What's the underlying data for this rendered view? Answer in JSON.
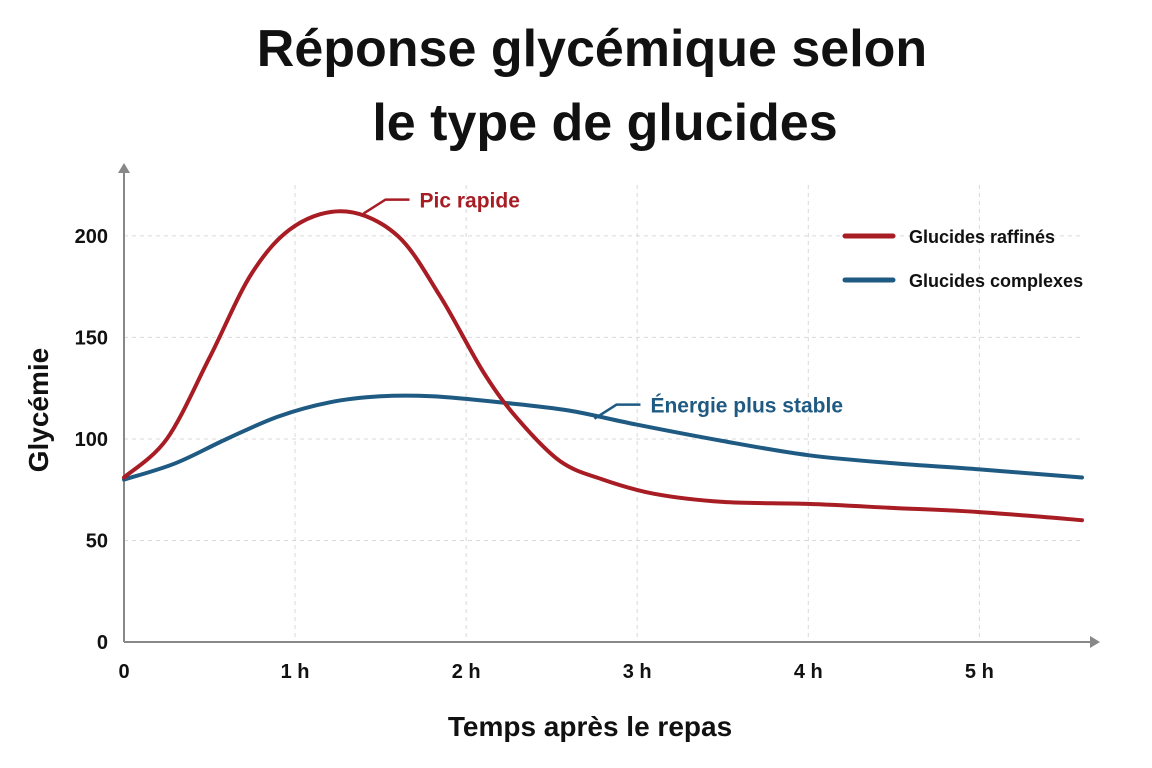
{
  "chart_data": {
    "type": "line",
    "title_lines": [
      "Réponse glycémique selon",
      "le type de glucides"
    ],
    "xlabel": "Temps après le repas",
    "ylabel": "Glycémie",
    "x_ticks": [
      {
        "value": 0,
        "label": "0"
      },
      {
        "value": 1,
        "label": "1 h"
      },
      {
        "value": 2,
        "label": "2 h"
      },
      {
        "value": 3,
        "label": "3 h"
      },
      {
        "value": 4,
        "label": "4 h"
      },
      {
        "value": 5,
        "label": "5 h"
      }
    ],
    "y_ticks": [
      0,
      50,
      100,
      150,
      200
    ],
    "xlim": [
      0,
      5.6
    ],
    "ylim": [
      0,
      230
    ],
    "grid": true,
    "legend_position": "top-right",
    "series": [
      {
        "name": "Glucides raffinés",
        "color": "#a81c24",
        "points": [
          [
            0,
            81
          ],
          [
            0.25,
            100
          ],
          [
            0.5,
            140
          ],
          [
            0.75,
            182
          ],
          [
            1,
            205
          ],
          [
            1.3,
            212
          ],
          [
            1.6,
            200
          ],
          [
            1.85,
            170
          ],
          [
            2.1,
            133
          ],
          [
            2.3,
            110
          ],
          [
            2.55,
            89
          ],
          [
            2.8,
            80
          ],
          [
            3.1,
            73
          ],
          [
            3.5,
            69
          ],
          [
            4,
            68
          ],
          [
            4.5,
            66
          ],
          [
            5,
            64
          ],
          [
            5.6,
            60
          ]
        ]
      },
      {
        "name": "Glucides complexes",
        "color": "#1f5a83",
        "points": [
          [
            0,
            80
          ],
          [
            0.3,
            88
          ],
          [
            0.6,
            100
          ],
          [
            0.9,
            111
          ],
          [
            1.2,
            118
          ],
          [
            1.5,
            121
          ],
          [
            1.8,
            121
          ],
          [
            2.2,
            118
          ],
          [
            2.6,
            114
          ],
          [
            3,
            107
          ],
          [
            3.5,
            99
          ],
          [
            4,
            92
          ],
          [
            4.5,
            88
          ],
          [
            5,
            85
          ],
          [
            5.6,
            81
          ]
        ]
      }
    ],
    "annotations": [
      {
        "text": "Pic rapide",
        "series": 0,
        "anchor": [
          1.4,
          211
        ],
        "color": "#a81c24"
      },
      {
        "text": "Énergie plus stable",
        "series": 1,
        "anchor": [
          2.75,
          110
        ],
        "color": "#1f5a83"
      }
    ]
  }
}
